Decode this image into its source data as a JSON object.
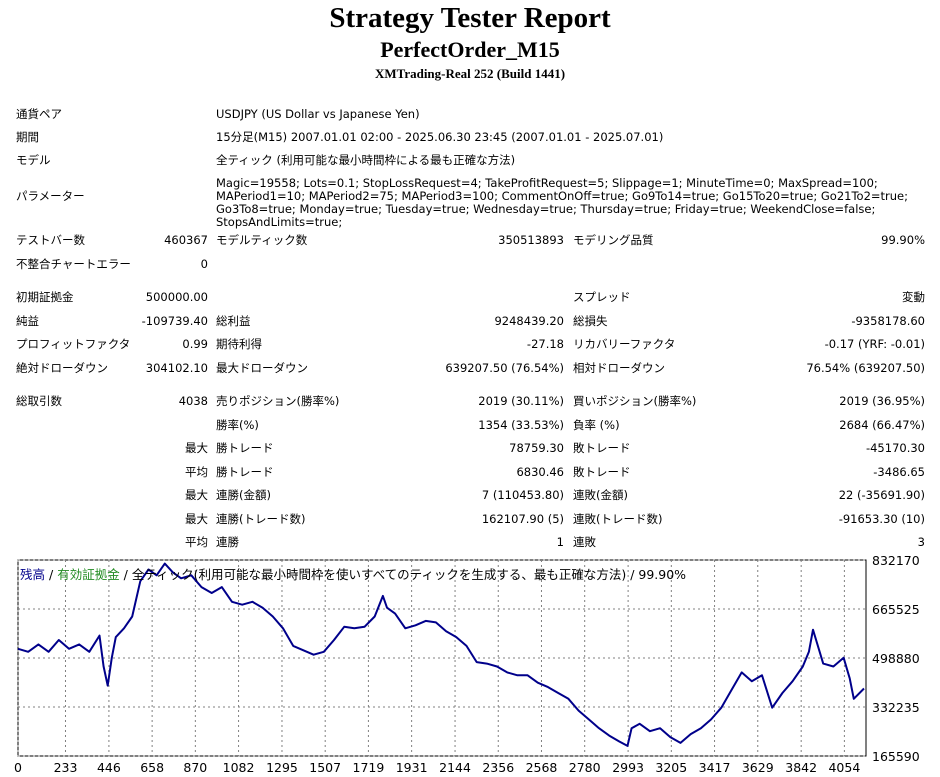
{
  "header": {
    "title": "Strategy Tester Report",
    "subtitle": "PerfectOrder_M15",
    "broker": "XMTrading-Real 252 (Build 1441)"
  },
  "settings": {
    "symbol_label": "通貨ペア",
    "symbol_value": "USDJPY (US Dollar vs Japanese Yen)",
    "period_label": "期間",
    "period_value": "15分足(M15) 2007.01.01 02:00 - 2025.06.30 23:45 (2007.01.01 - 2025.07.01)",
    "model_label": "モデル",
    "model_value": "全ティック (利用可能な最小時間枠による最も正確な方法)",
    "params_label": "パラメーター",
    "params_value": "Magic=19558; Lots=0.1; StopLossRequest=4; TakeProfitRequest=5; Slippage=1; MinuteTime=0; MaxSpread=100; MAPeriod1=10; MAPeriod2=75; MAPeriod3=100; CommentOnOff=true; Go9To14=true; Go15To20=true; Go21To2=true; Go3To8=true; Monday=true; Tuesday=true; Wednesday=true; Thursday=true; Friday=true; WeekendClose=false; StopsAndLimits=true;"
  },
  "stats": {
    "bars_label": "テストバー数",
    "bars_value": "460367",
    "ticks_label": "モデルティック数",
    "ticks_value": "350513893",
    "quality_label": "モデリング品質",
    "quality_value": "99.90%",
    "mismatch_label": "不整合チャートエラー",
    "mismatch_value": "0",
    "deposit_label": "初期証拠金",
    "deposit_value": "500000.00",
    "spread_label": "スプレッド",
    "spread_value": "変動",
    "net_label": "純益",
    "net_value": "-109739.40",
    "gross_profit_label": "総利益",
    "gross_profit_value": "9248439.20",
    "gross_loss_label": "総損失",
    "gross_loss_value": "-9358178.60",
    "pf_label": "プロフィットファクタ",
    "pf_value": "0.99",
    "expected_label": "期待利得",
    "expected_value": "-27.18",
    "recovery_label": "リカバリーファクタ",
    "recovery_value": "-0.17 (YRF: -0.01)",
    "abs_dd_label": "絶対ドローダウン",
    "abs_dd_value": "304102.10",
    "max_dd_label": "最大ドローダウン",
    "max_dd_value": "639207.50 (76.54%)",
    "rel_dd_label": "相対ドローダウン",
    "rel_dd_value": "76.54% (639207.50)",
    "trades_label": "総取引数",
    "trades_value": "4038",
    "short_label": "売りポジション(勝率%)",
    "short_value": "2019 (30.11%)",
    "long_label": "買いポジション(勝率%)",
    "long_value": "2019 (36.95%)",
    "winrate_label": "勝率(%)",
    "winrate_value": "1354 (33.53%)",
    "lossrate_label": "負率 (%)",
    "lossrate_value": "2684 (66.47%)",
    "max_label": "最大",
    "avg_label": "平均",
    "win_trade_label": "勝トレード",
    "lose_trade_label": "敗トレード",
    "largest_win_value": "78759.30",
    "largest_loss_value": "-45170.30",
    "avg_win_value": "6830.46",
    "avg_loss_value": "-3486.65",
    "consec_wins_money_label": "連勝(金額)",
    "consec_wins_money_value": "7 (110453.80)",
    "consec_losses_money_label": "連敗(金額)",
    "consec_losses_money_value": "22 (-35691.90)",
    "consec_wins_trades_label": "連勝(トレード数)",
    "consec_wins_trades_value": "162107.90 (5)",
    "consec_losses_trades_label": "連敗(トレード数)",
    "consec_losses_trades_value": "-91653.30 (10)",
    "avg_consec_wins_label": "連勝",
    "avg_consec_wins_value": "1",
    "avg_consec_losses_label": "連敗",
    "avg_consec_losses_value": "3"
  },
  "chart_legend": {
    "balance": "残高",
    "sep1": " / ",
    "equity": "有効証拠金",
    "rest": " / 全ティック(利用可能な最小時間枠を使いすべてのティックを生成する、最も正確な方法) / 99.90%"
  },
  "colors": {
    "balance_line": "#00008b",
    "equity_label": "#228b22",
    "grid": "#808080"
  },
  "chart_data": {
    "type": "line",
    "x_ticks": [
      0,
      233,
      446,
      658,
      870,
      1082,
      1295,
      1507,
      1719,
      1931,
      2144,
      2356,
      2568,
      2780,
      2993,
      3205,
      3417,
      3629,
      3842,
      4054
    ],
    "y_ticks": [
      832170,
      665525,
      498880,
      332235,
      165590
    ],
    "xlim": [
      0,
      4160
    ],
    "ylim": [
      165590,
      832170
    ],
    "series": [
      {
        "x": [
          0,
          50,
          100,
          150,
          200,
          250,
          300,
          350,
          400,
          420,
          440,
          460,
          480,
          520,
          560,
          600,
          640,
          680,
          720,
          760,
          800,
          850,
          900,
          950,
          1000,
          1050,
          1100,
          1150,
          1200,
          1250,
          1300,
          1350,
          1400,
          1450,
          1500,
          1550,
          1600,
          1650,
          1700,
          1750,
          1790,
          1810,
          1850,
          1900,
          1950,
          2000,
          2050,
          2100,
          2150,
          2200,
          2250,
          2300,
          2350,
          2400,
          2450,
          2500,
          2550,
          2600,
          2650,
          2700,
          2750,
          2800,
          2850,
          2900,
          2950,
          2990,
          3010,
          3050,
          3100,
          3150,
          3200,
          3250,
          3300,
          3350,
          3400,
          3450,
          3500,
          3550,
          3600,
          3650,
          3700,
          3750,
          3800,
          3850,
          3880,
          3900,
          3950,
          4000,
          4050,
          4080,
          4100,
          4150
        ],
        "y": [
          530000,
          520000,
          545000,
          520000,
          560000,
          530000,
          545000,
          520000,
          575000,
          470000,
          405000,
          500000,
          570000,
          600000,
          640000,
          760000,
          800000,
          780000,
          820000,
          790000,
          770000,
          780000,
          740000,
          720000,
          740000,
          690000,
          680000,
          690000,
          670000,
          640000,
          600000,
          540000,
          525000,
          510000,
          520000,
          560000,
          605000,
          600000,
          605000,
          640000,
          710000,
          670000,
          650000,
          600000,
          610000,
          625000,
          620000,
          590000,
          570000,
          540000,
          485000,
          480000,
          470000,
          450000,
          440000,
          440000,
          415000,
          400000,
          380000,
          360000,
          320000,
          290000,
          260000,
          235000,
          215000,
          200000,
          260000,
          275000,
          250000,
          260000,
          230000,
          210000,
          240000,
          260000,
          290000,
          330000,
          390000,
          450000,
          420000,
          440000,
          330000,
          380000,
          420000,
          470000,
          520000,
          595000,
          480000,
          470000,
          500000,
          430000,
          360000,
          395000
        ]
      }
    ]
  }
}
